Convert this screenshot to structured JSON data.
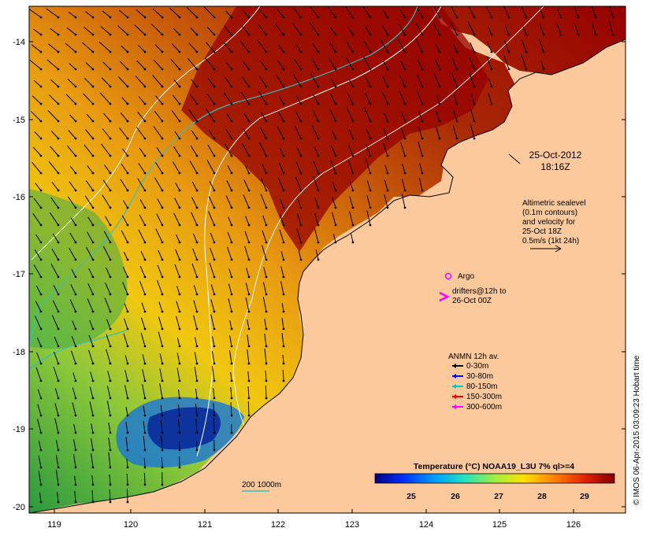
{
  "map": {
    "y_ticks": [
      "-14",
      "-15",
      "-16",
      "-17",
      "-18",
      "-19",
      "-20"
    ],
    "x_ticks": [
      "119",
      "120",
      "121",
      "122",
      "123",
      "124",
      "125",
      "126"
    ]
  },
  "annotations": {
    "date_line1": "25-Oct-2012",
    "date_line2": "18:16Z",
    "altimetric": [
      "Altimetric sealevel",
      "(0.1m contours)",
      "and velocity for",
      "25-Oct 18Z",
      "0.5m/s (1kt 24h)"
    ],
    "argo": "Argo",
    "drifters_line1": "drifters@12h to",
    "drifters_line2": "26-Oct 00Z",
    "depth_legend": "200  1000m"
  },
  "anmn_legend": {
    "title": "ANMN 12h av.",
    "items": [
      {
        "label": "0-30m",
        "color": "#000000"
      },
      {
        "label": "30-80m",
        "color": "#0000ff"
      },
      {
        "label": "80-150m",
        "color": "#00c8c8"
      },
      {
        "label": "150-300m",
        "color": "#ff0000"
      },
      {
        "label": "300-600m",
        "color": "#ff00ff"
      }
    ]
  },
  "colorbar": {
    "title": "Temperature (°C) NOAA19_L3U 7% ql>=4",
    "ticks": [
      "25",
      "26",
      "27",
      "28",
      "29"
    ]
  },
  "credit": "© IMOS 06-Apr-2015 03:09:23 Hobart time",
  "colors": {
    "land": "#fcc99c",
    "coast": "#000000",
    "iso200": "#33c0c0",
    "iso1000": "#ffffff"
  }
}
